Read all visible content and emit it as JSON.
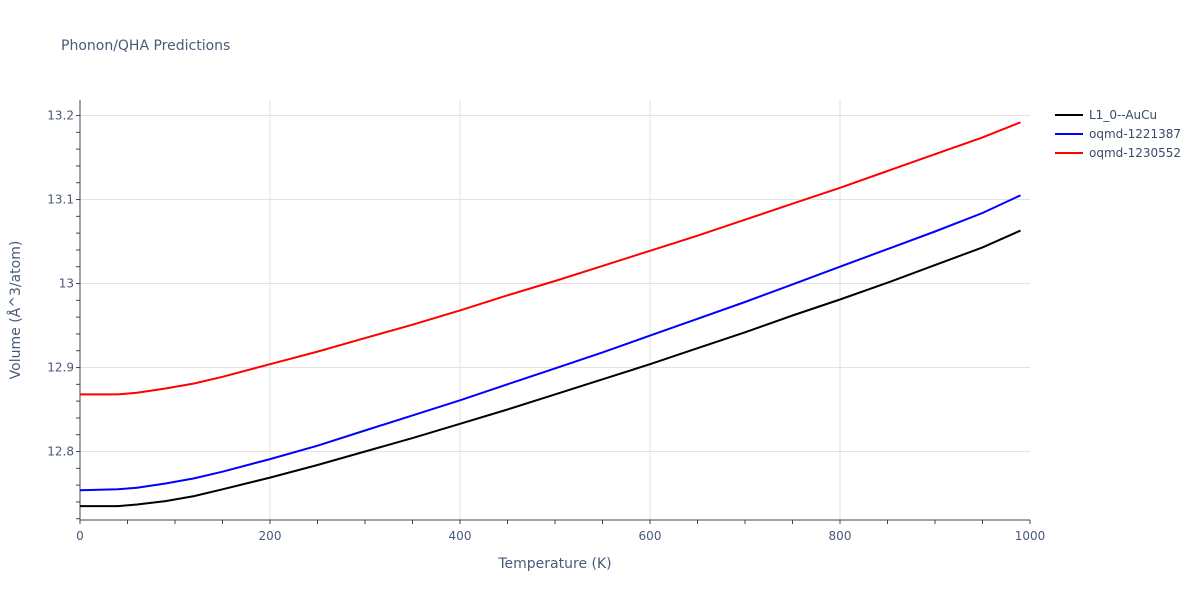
{
  "chart_data": {
    "type": "line",
    "title": "Phonon/QHA Predictions",
    "xlabel": "Temperature (K)",
    "ylabel": "Volume (Å^3/atom)",
    "xlim": [
      0,
      1000
    ],
    "ylim": [
      12.7185,
      13.2185
    ],
    "xticks": [
      0,
      200,
      400,
      600,
      800,
      1000
    ],
    "yticks": [
      12.8,
      12.9,
      13,
      13.1,
      13.2
    ],
    "ytick_labels": [
      "12.8",
      "12.9",
      "13",
      "13.1",
      "13.2"
    ],
    "grid": true,
    "legend_position": "top-right",
    "series": [
      {
        "name": "L1_0--AuCu",
        "color": "#000000",
        "x": [
          0,
          40,
          60,
          90,
          120,
          150,
          200,
          250,
          300,
          350,
          400,
          450,
          500,
          550,
          600,
          650,
          700,
          750,
          800,
          850,
          900,
          950,
          990
        ],
        "y": [
          12.735,
          12.735,
          12.737,
          12.741,
          12.747,
          12.755,
          12.769,
          12.784,
          12.8,
          12.816,
          12.833,
          12.85,
          12.868,
          12.886,
          12.904,
          12.923,
          12.942,
          12.962,
          12.981,
          13.001,
          13.022,
          13.043,
          13.063
        ]
      },
      {
        "name": "oqmd-1221387",
        "color": "#0000ff",
        "x": [
          0,
          40,
          60,
          90,
          120,
          150,
          200,
          250,
          300,
          350,
          400,
          450,
          500,
          550,
          600,
          650,
          700,
          750,
          800,
          850,
          900,
          950,
          990
        ],
        "y": [
          12.754,
          12.755,
          12.757,
          12.762,
          12.768,
          12.776,
          12.791,
          12.807,
          12.825,
          12.843,
          12.861,
          12.88,
          12.899,
          12.918,
          12.938,
          12.958,
          12.978,
          12.999,
          13.02,
          13.041,
          13.062,
          13.084,
          13.105
        ]
      },
      {
        "name": "oqmd-1230552",
        "color": "#ff0000",
        "x": [
          0,
          40,
          60,
          90,
          120,
          150,
          200,
          250,
          300,
          350,
          400,
          450,
          500,
          550,
          600,
          650,
          700,
          750,
          800,
          850,
          900,
          950,
          990
        ],
        "y": [
          12.868,
          12.868,
          12.87,
          12.875,
          12.881,
          12.889,
          12.904,
          12.919,
          12.935,
          12.951,
          12.968,
          12.986,
          13.003,
          13.021,
          13.039,
          13.057,
          13.076,
          13.095,
          13.114,
          13.134,
          13.154,
          13.174,
          13.192
        ]
      }
    ]
  }
}
